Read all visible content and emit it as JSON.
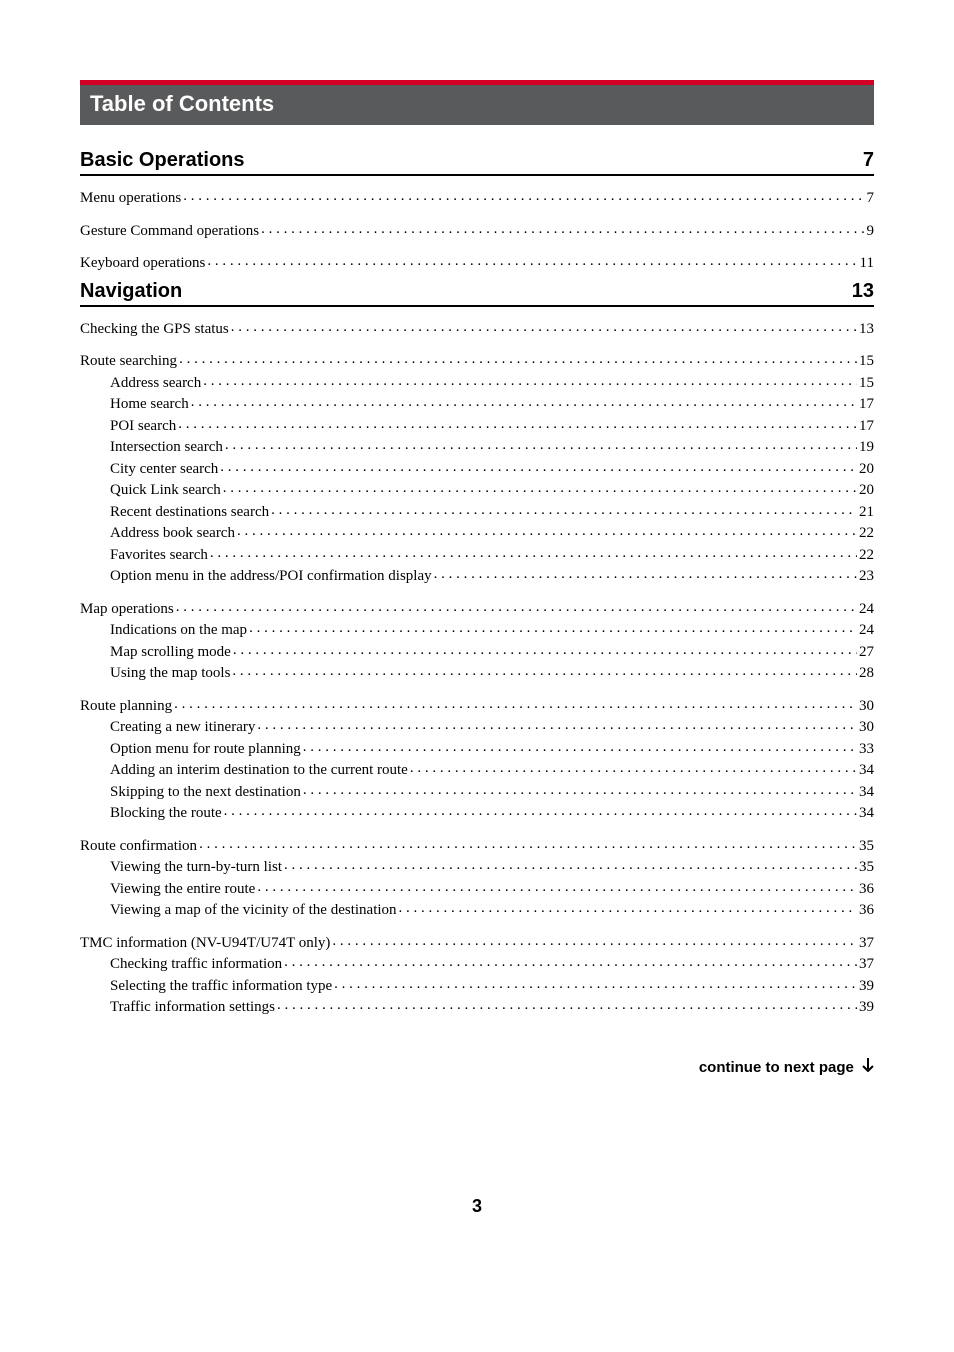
{
  "title_bar": "Table of Contents",
  "sections": [
    {
      "title": "Basic Operations",
      "page": "7",
      "entries": [
        {
          "label": "Menu operations",
          "page": "7",
          "level": 0
        },
        {
          "label": "Gesture Command operations",
          "page": "9",
          "level": 0
        },
        {
          "label": "Keyboard operations",
          "page": "11",
          "level": 0
        }
      ]
    },
    {
      "title": "Navigation",
      "page": "13",
      "entries": [
        {
          "label": "Checking the GPS status",
          "page": "13",
          "level": 0
        },
        {
          "label": "Route searching",
          "page": "15",
          "level": 0
        },
        {
          "label": "Address search",
          "page": "15",
          "level": 1
        },
        {
          "label": "Home search",
          "page": "17",
          "level": 1
        },
        {
          "label": "POI search",
          "page": "17",
          "level": 1
        },
        {
          "label": "Intersection search",
          "page": "19",
          "level": 1
        },
        {
          "label": "City center search",
          "page": "20",
          "level": 1
        },
        {
          "label": "Quick Link search",
          "page": "20",
          "level": 1
        },
        {
          "label": "Recent destinations search",
          "page": "21",
          "level": 1
        },
        {
          "label": "Address book search",
          "page": "22",
          "level": 1
        },
        {
          "label": "Favorites search",
          "page": "22",
          "level": 1
        },
        {
          "label": "Option menu in the address/POI confirmation display",
          "page": "23",
          "level": 1
        },
        {
          "label": "Map operations",
          "page": "24",
          "level": 0
        },
        {
          "label": "Indications on the map",
          "page": "24",
          "level": 1
        },
        {
          "label": "Map scrolling mode",
          "page": "27",
          "level": 1
        },
        {
          "label": "Using the map tools",
          "page": "28",
          "level": 1
        },
        {
          "label": "Route planning",
          "page": "30",
          "level": 0
        },
        {
          "label": "Creating a new itinerary",
          "page": "30",
          "level": 1
        },
        {
          "label": "Option menu for route planning",
          "page": "33",
          "level": 1
        },
        {
          "label": "Adding an interim destination to the current route",
          "page": "34",
          "level": 1
        },
        {
          "label": "Skipping to the next destination",
          "page": "34",
          "level": 1
        },
        {
          "label": "Blocking the route",
          "page": "34",
          "level": 1
        },
        {
          "label": "Route confirmation",
          "page": "35",
          "level": 0
        },
        {
          "label": "Viewing the turn-by-turn list",
          "page": "35",
          "level": 1
        },
        {
          "label": "Viewing the entire route",
          "page": "36",
          "level": 1
        },
        {
          "label": "Viewing a map of the vicinity of the destination",
          "page": "36",
          "level": 1
        },
        {
          "label": "TMC information (NV-U94T/U74T only)",
          "page": "37",
          "level": 0
        },
        {
          "label": "Checking traffic information",
          "page": "37",
          "level": 1
        },
        {
          "label": "Selecting the traffic information type",
          "page": "39",
          "level": 1
        },
        {
          "label": "Traffic information settings",
          "page": "39",
          "level": 1
        }
      ]
    }
  ],
  "continue_text": "continue to next page",
  "page_number": "3"
}
